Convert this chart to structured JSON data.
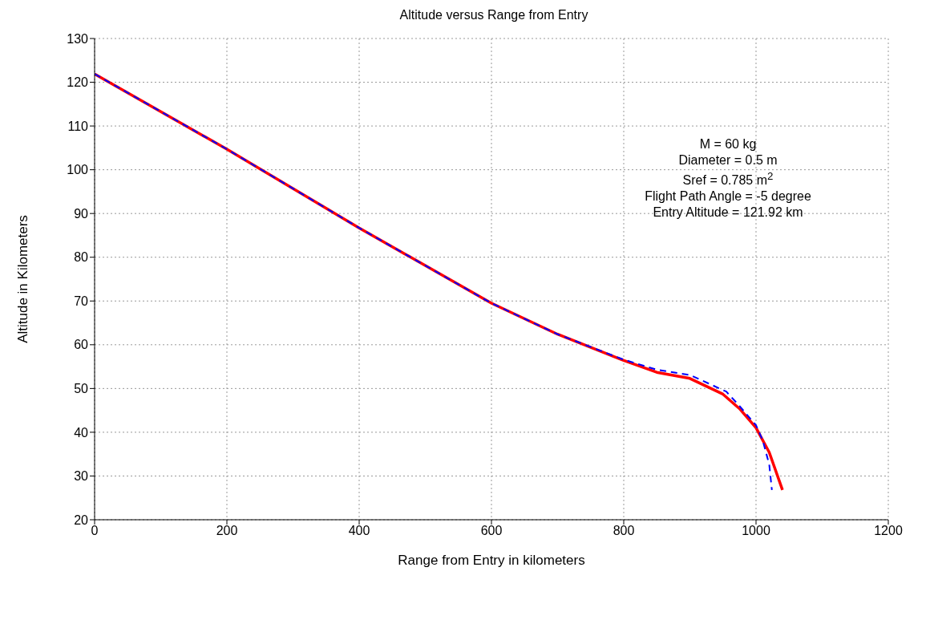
{
  "chart_data": {
    "type": "line",
    "title": "Altitude versus Range from Entry",
    "xlabel": "Range from Entry in kilometers",
    "ylabel": "Altitude in Kilometers",
    "annotations": [
      "M = 60 kg",
      "Diameter = 0.5 m",
      "Sref = 0.785 m$^{2}$",
      "Flight Path Angle = -5 degree",
      "Entry Altitude = 121.92 km"
    ],
    "series": [
      {
        "color": "#ff0000",
        "line_style": "solid",
        "x": [
          0,
          200,
          400,
          600,
          700,
          800,
          850,
          900,
          950,
          975,
          1000,
          1020,
          1040
        ],
        "values": [
          121.9,
          104.7,
          86.7,
          69.5,
          62.4,
          56.4,
          53.7,
          52.3,
          48.7,
          45.4,
          41,
          35.4,
          26.8
        ]
      },
      {
        "color": "#0000ff",
        "line_style": "dashed",
        "x": [
          0,
          200,
          400,
          600,
          700,
          800,
          850,
          900,
          955,
          975,
          1000,
          1010,
          1020,
          1024
        ],
        "values": [
          121.9,
          104.7,
          86.7,
          69.5,
          62.4,
          56.6,
          54.3,
          53.1,
          49.3,
          46,
          41.6,
          38.2,
          32.6,
          26.8
        ]
      }
    ],
    "xlim": [
      0,
      1200
    ],
    "xticks": [
      0,
      200,
      400,
      600,
      800,
      1000,
      1200
    ],
    "ylim": [
      20,
      130
    ],
    "yticks": [
      20,
      30,
      40,
      50,
      60,
      70,
      80,
      90,
      100,
      110,
      120,
      130
    ],
    "grid": true,
    "marker": "none"
  }
}
